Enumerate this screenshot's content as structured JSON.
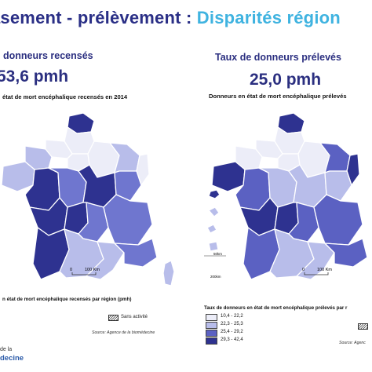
{
  "title": {
    "part1": "asement - prélèvement : ",
    "part2": "Disparités région"
  },
  "left": {
    "subtitle": "donneurs recensés",
    "value": "53,6 pmh",
    "caption_top": "état de mort encéphalique recensés en 2014",
    "caption_bottom": "n état de mort encéphalique recensés par région (pmh)",
    "scale_label": "100 Km",
    "scale_zero": "0",
    "sans_activite": "Sans activité",
    "source": "Source: Agence de la biomédecine",
    "colors": {
      "c1": "#ecedf8",
      "c2": "#b8bdea",
      "c3": "#6f76cf",
      "c4": "#2e3290"
    }
  },
  "right": {
    "subtitle": "Taux de donneurs prélevés",
    "value": "25,0 pmh",
    "caption_top": "Donneurs en état de mort encéphalique prélevés",
    "scale_label": "100 Km",
    "scale_zero": "0",
    "inset_labels": [
      "50km",
      "200km"
    ],
    "legend": {
      "title": "Taux de donneurs en état de mort encéphalique prélevés par r",
      "items": [
        {
          "label": "10,4 - 22,2",
          "color": "#ecedf8"
        },
        {
          "label": "22,3 - 25,3",
          "color": "#b8bdea"
        },
        {
          "label": "25,4 - 29,2",
          "color": "#5b61c2"
        },
        {
          "label": "29,3 - 42,4",
          "color": "#2e3290"
        }
      ]
    },
    "source": "Source: Agenc"
  },
  "logo": {
    "line1": "de la",
    "line2": "decine"
  },
  "map_data": {
    "left_regions": {
      "nord": "c4",
      "picardie": "c1",
      "haute_normandie": "c1",
      "basse_normandie": "c2",
      "bretagne": "c2",
      "pays_de_loire": "c4",
      "centre": "c3",
      "idf": "c1",
      "champagne": "c1",
      "lorraine": "c2",
      "alsace": "c1",
      "bourgogne": "c4",
      "franche_comte": "c3",
      "poitou": "c4",
      "limousin": "c4",
      "auvergne": "c3",
      "rhone_alpes": "c3",
      "aquitaine": "c4",
      "midi_pyrenees": "c2",
      "languedoc": "c2",
      "paca": "c3",
      "corse": "c2"
    },
    "right_regions": {
      "nord": "c4",
      "picardie": "c1",
      "haute_normandie": "c1",
      "basse_normandie": "c1",
      "bretagne": "c4",
      "pays_de_loire": "c3",
      "centre": "c2",
      "idf": "c1",
      "champagne": "c1",
      "lorraine": "c3",
      "alsace": "c4",
      "bourgogne": "c2",
      "franche_comte": "c2",
      "poitou": "c4",
      "limousin": "c4",
      "auvergne": "c3",
      "rhone_alpes": "c3",
      "aquitaine": "c3",
      "midi_pyrenees": "c2",
      "languedoc": "c2",
      "paca": "c3",
      "corse": "c3"
    },
    "right_colors": {
      "c1": "#ecedf8",
      "c2": "#b8bdea",
      "c3": "#5b61c2",
      "c4": "#2e3290"
    }
  }
}
